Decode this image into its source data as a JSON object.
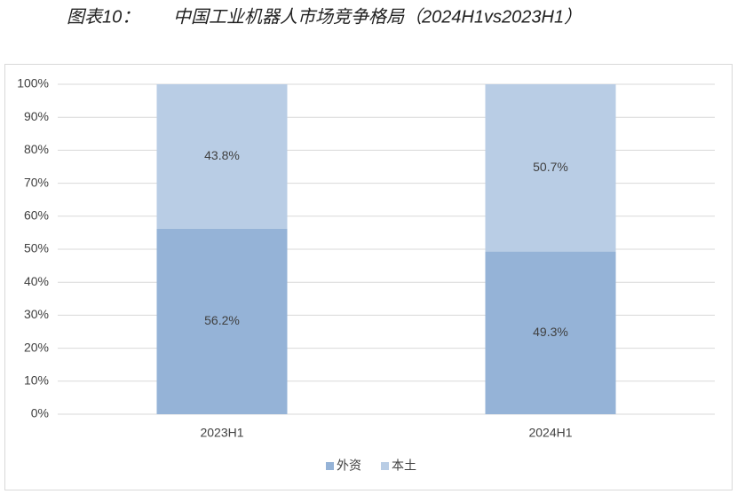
{
  "chart_data": {
    "type": "stacked-bar",
    "label": "图表10：",
    "title": "中国工业机器人市场竞争格局（2024H1vs2023H1）",
    "categories": [
      "2023H1",
      "2024H1"
    ],
    "series": [
      {
        "name": "外资",
        "color": "#95b3d7",
        "values": [
          56.2,
          49.3
        ],
        "value_labels": [
          "56.2%",
          "49.3%"
        ]
      },
      {
        "name": "本土",
        "color": "#b9cde5",
        "values": [
          43.8,
          50.7
        ],
        "value_labels": [
          "43.8%",
          "50.7%"
        ]
      }
    ],
    "ylim": [
      0,
      100
    ],
    "yticks": [
      {
        "value": 0,
        "label": "0%"
      },
      {
        "value": 10,
        "label": "10%"
      },
      {
        "value": 20,
        "label": "20%"
      },
      {
        "value": 30,
        "label": "30%"
      },
      {
        "value": 40,
        "label": "40%"
      },
      {
        "value": 50,
        "label": "50%"
      },
      {
        "value": 60,
        "label": "60%"
      },
      {
        "value": 70,
        "label": "70%"
      },
      {
        "value": 80,
        "label": "80%"
      },
      {
        "value": 90,
        "label": "90%"
      },
      {
        "value": 100,
        "label": "100%"
      }
    ],
    "grid": true,
    "legend": "bottom"
  }
}
